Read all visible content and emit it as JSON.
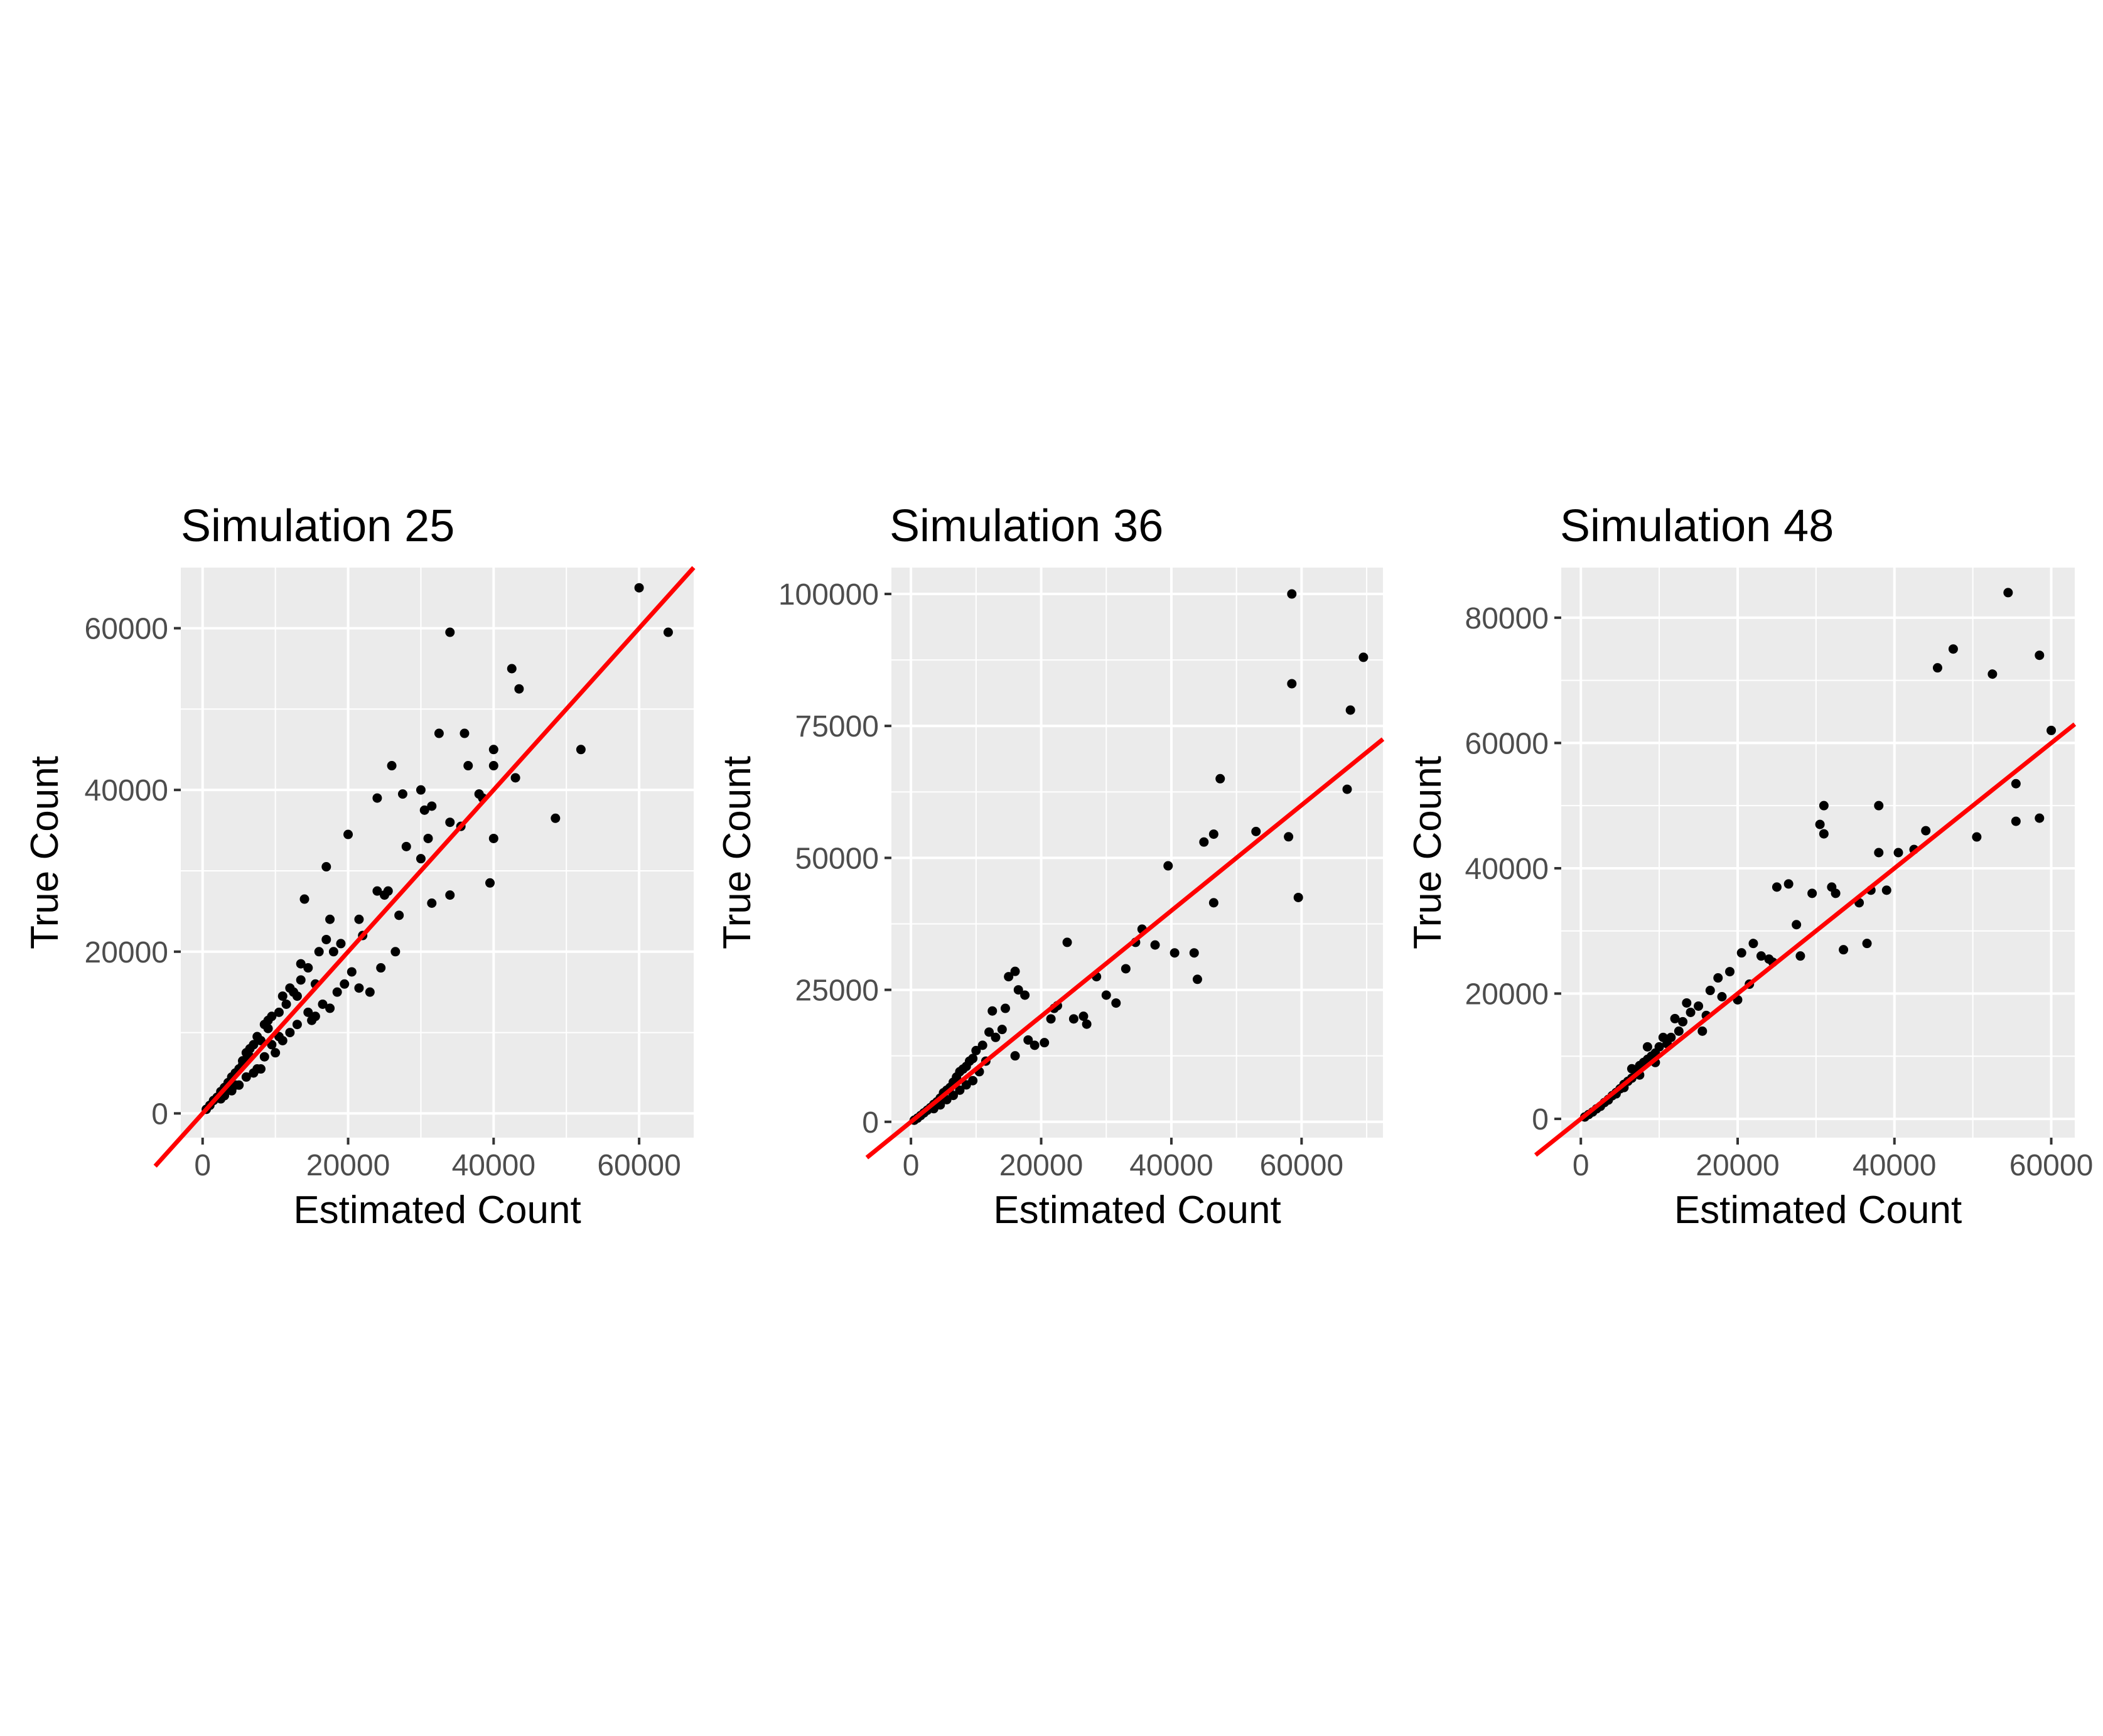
{
  "chart_data": [
    {
      "type": "scatter",
      "title": "Simulation  25",
      "xlabel": "Estimated Count",
      "ylabel": "True Count",
      "xlim": [
        -3000,
        67500
      ],
      "ylim": [
        -3000,
        67500
      ],
      "xticks": [
        0,
        20000,
        40000,
        60000
      ],
      "yticks": [
        0,
        20000,
        40000,
        60000
      ],
      "xtick_labels": [
        "0",
        "20000",
        "40000",
        "60000"
      ],
      "ytick_labels": [
        "0",
        "20000",
        "40000",
        "60000"
      ],
      "fit_line": {
        "slope": 1.0,
        "intercept": 0,
        "color": "#ff0000"
      },
      "point_color": "#000000",
      "panel_bg": "#ebebeb",
      "grid_color": "#ffffff",
      "x": [
        60000,
        64000,
        34000,
        42500,
        43500,
        52000,
        48500,
        39500,
        32500,
        36000,
        40000,
        40000,
        43000,
        36500,
        38500,
        35500,
        38000,
        34000,
        31500,
        30500,
        30000,
        31000,
        28000,
        26000,
        27500,
        24000,
        25000,
        20000,
        27000,
        31500,
        30000,
        34000,
        40000,
        17000,
        14000,
        21500,
        24000,
        25500,
        22000,
        17500,
        17000,
        14500,
        16000,
        18000,
        15500,
        13500,
        13000,
        12500,
        11500,
        10500,
        9500,
        9000,
        8500,
        8000,
        7500,
        7000,
        6500,
        6000,
        5500,
        5000,
        4500,
        4000,
        3500,
        3000,
        2500,
        2000,
        1500,
        1000,
        500,
        11000,
        12000,
        10000,
        9500,
        8000,
        7000,
        6000,
        5000,
        4000,
        3000,
        15000,
        16500,
        18500,
        19500,
        20500,
        21500,
        23000,
        24500,
        26500,
        12000,
        13500,
        14500,
        11000,
        10500,
        9000,
        8500,
        6500,
        7500,
        5500,
        4500,
        3500,
        2500,
        13000,
        15500,
        17500,
        19000
      ],
      "y": [
        65000,
        59500,
        59500,
        55000,
        52500,
        45000,
        36500,
        28500,
        47000,
        47000,
        45000,
        43000,
        41500,
        43000,
        39000,
        35500,
        39500,
        36000,
        38000,
        37500,
        40000,
        34000,
        33000,
        43000,
        39500,
        39000,
        27000,
        34500,
        24500,
        26000,
        31500,
        27000,
        34000,
        30500,
        26500,
        24000,
        27500,
        27500,
        22000,
        24000,
        21500,
        18000,
        20000,
        20000,
        16000,
        18500,
        14500,
        15000,
        13500,
        12500,
        12000,
        10500,
        11000,
        9000,
        9500,
        8500,
        7000,
        7500,
        6500,
        5500,
        5000,
        4500,
        3800,
        3200,
        2700,
        2000,
        1600,
        1000,
        500,
        9000,
        10000,
        7500,
        8500,
        5500,
        5000,
        4500,
        3500,
        2800,
        2200,
        11500,
        13500,
        15000,
        16000,
        17500,
        15500,
        15000,
        18000,
        20000,
        15500,
        16500,
        12500,
        14500,
        9500,
        11500,
        7000,
        8000,
        5500,
        6000,
        3500,
        3000,
        1800,
        11000,
        12000,
        13000,
        21000
      ]
    },
    {
      "type": "scatter",
      "title": "Simulation  36",
      "xlabel": "Estimated Count",
      "ylabel": "True Count",
      "xlim": [
        -3000,
        72500
      ],
      "ylim": [
        -3000,
        105000
      ],
      "xticks": [
        0,
        20000,
        40000,
        60000
      ],
      "yticks": [
        0,
        25000,
        50000,
        75000,
        100000
      ],
      "xtick_labels": [
        "0",
        "20000",
        "40000",
        "60000"
      ],
      "ytick_labels": [
        "0",
        "25000",
        "50000",
        "75000",
        "100000"
      ],
      "fit_line": {
        "slope": 1.0,
        "intercept": 0,
        "color": "#ff0000"
      },
      "point_color": "#000000",
      "panel_bg": "#ebebeb",
      "grid_color": "#ffffff",
      "x": [
        58500,
        69500,
        58500,
        67500,
        67000,
        58000,
        59500,
        47500,
        45000,
        46500,
        46500,
        53000,
        44000,
        39500,
        40500,
        43500,
        35500,
        33000,
        30000,
        26500,
        24000,
        27000,
        22000,
        16000,
        16500,
        15000,
        14500,
        17500,
        19000,
        20500,
        21500,
        12500,
        13000,
        12000,
        11000,
        10000,
        9500,
        9000,
        8500,
        8000,
        7500,
        7000,
        6500,
        6000,
        5500,
        5000,
        4500,
        4000,
        3500,
        3000,
        2500,
        2000,
        1500,
        1000,
        500,
        11500,
        10500,
        9500,
        8500,
        7500,
        6500,
        5500,
        4500,
        3500,
        14000,
        16000,
        18000,
        22500,
        25000,
        28500,
        31500,
        34500,
        37500
      ],
      "y": [
        100000,
        88000,
        83000,
        78000,
        63000,
        54000,
        42500,
        65000,
        53000,
        54500,
        41500,
        55000,
        27000,
        48500,
        32000,
        32000,
        36500,
        29000,
        24000,
        20000,
        34000,
        18500,
        21500,
        28500,
        25000,
        27500,
        21500,
        24000,
        14500,
        15000,
        19500,
        21000,
        16000,
        17000,
        14500,
        13500,
        12000,
        11500,
        10500,
        10000,
        9500,
        8500,
        7500,
        6500,
        6000,
        5500,
        4500,
        3800,
        3300,
        2700,
        2200,
        1700,
        1200,
        700,
        300,
        11500,
        9500,
        7800,
        7000,
        6000,
        5000,
        4200,
        3200,
        2500,
        17500,
        12500,
        15500,
        22000,
        19500,
        27500,
        22500,
        34000,
        33500
      ]
    },
    {
      "type": "scatter",
      "title": "Simulation  48",
      "xlabel": "Estimated Count",
      "ylabel": "True Count",
      "xlim": [
        -2500,
        63000
      ],
      "ylim": [
        -3000,
        88000
      ],
      "xticks": [
        0,
        20000,
        40000,
        60000
      ],
      "yticks": [
        0,
        20000,
        40000,
        60000,
        80000
      ],
      "xtick_labels": [
        "0",
        "20000",
        "40000",
        "60000"
      ],
      "ytick_labels": [
        "0",
        "20000",
        "40000",
        "60000",
        "80000"
      ],
      "fit_line": {
        "slope": 1.0,
        "intercept": 0,
        "color": "#ff0000"
      },
      "point_color": "#000000",
      "panel_bg": "#ebebeb",
      "grid_color": "#ffffff",
      "x": [
        54500,
        47500,
        45500,
        52500,
        58500,
        60000,
        55500,
        55500,
        50500,
        58500,
        44000,
        42500,
        38000,
        40500,
        38000,
        37000,
        39000,
        35500,
        31000,
        30500,
        31000,
        32000,
        32500,
        29500,
        26500,
        25000,
        27500,
        24000,
        22000,
        20500,
        19000,
        18000,
        20000,
        21500,
        23000,
        16500,
        16000,
        15000,
        14000,
        13000,
        12500,
        11500,
        11000,
        10000,
        9500,
        9000,
        8500,
        8000,
        7500,
        7000,
        6500,
        6000,
        5500,
        5000,
        4500,
        4000,
        3500,
        3000,
        2500,
        2000,
        1500,
        1000,
        500,
        13500,
        12000,
        10500,
        9500,
        8500,
        7500,
        6500,
        5500,
        4500,
        3500,
        17500,
        15500,
        24500,
        28000,
        33500,
        36500
      ],
      "y": [
        84000,
        75000,
        72000,
        71000,
        74000,
        62000,
        53500,
        47500,
        45000,
        48000,
        46000,
        43000,
        50000,
        42500,
        42500,
        36500,
        36500,
        34500,
        50000,
        47000,
        45500,
        37000,
        36000,
        36000,
        37500,
        37000,
        31000,
        25500,
        28000,
        26500,
        23500,
        19500,
        19000,
        21500,
        26000,
        20500,
        16500,
        18000,
        17000,
        15500,
        14000,
        13000,
        12000,
        11500,
        10500,
        10000,
        9500,
        9000,
        8500,
        7500,
        6500,
        6000,
        5500,
        4800,
        4200,
        3700,
        3100,
        2600,
        2000,
        1600,
        1100,
        700,
        300,
        18500,
        16000,
        13000,
        9000,
        11500,
        7000,
        8000,
        5000,
        4000,
        3000,
        22500,
        14000,
        25000,
        26000,
        27000,
        28000
      ]
    }
  ]
}
